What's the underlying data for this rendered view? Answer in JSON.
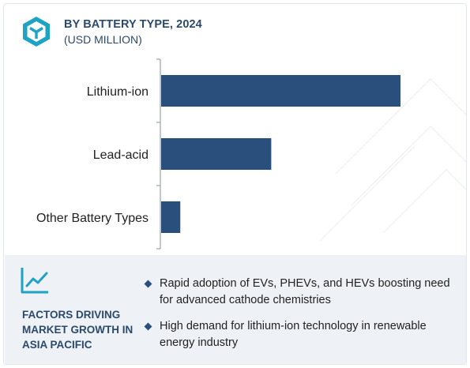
{
  "header": {
    "title": "BY BATTERY TYPE, 2024",
    "subtitle": "(USD MILLION)"
  },
  "chart_data": {
    "type": "bar",
    "orientation": "horizontal",
    "title": "BY BATTERY TYPE, 2024",
    "subtitle": "(USD MILLION)",
    "categories": [
      "Lithium-ion",
      "Lead-acid",
      "Other Battery Types"
    ],
    "values": [
      100,
      46,
      8
    ],
    "xlim": [
      0,
      100
    ],
    "grid": false,
    "legend": "none",
    "bar_color": "#2b4f7c"
  },
  "factors": {
    "title": "FACTORS DRIVING MARKET GROWTH IN ASIA PACIFIC",
    "icon": "line-chart-icon",
    "items": [
      "Rapid adoption of EVs, PHEVs, and HEVs boosting need for advanced cathode chemistries",
      "High demand for lithium-ion technology in renewable energy industry"
    ]
  },
  "colors": {
    "accent": "#2b4f7c",
    "title": "#2b4a6b",
    "logo": "#1fa3c4",
    "panel": "#eef1f5"
  }
}
